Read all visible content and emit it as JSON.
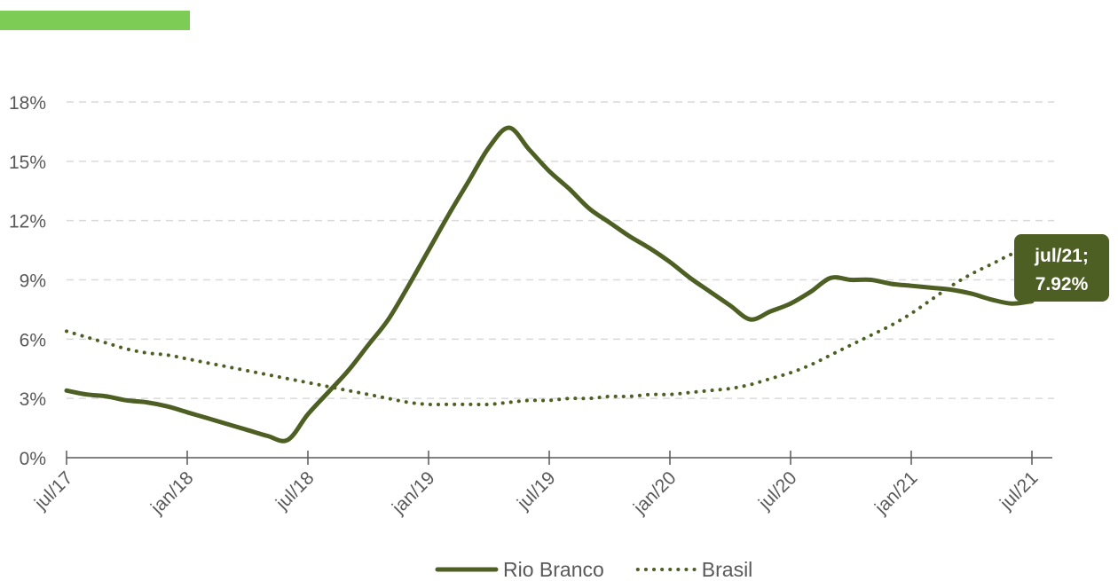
{
  "colors": {
    "accent_bar": "#7ccc55",
    "series_primary": "#4e5f24",
    "series_secondary": "#4e5f24",
    "gridline": "#d9d9d9",
    "axis": "#595959",
    "callout_bg": "#4e5f24",
    "callout_text": "#ffffff"
  },
  "chart_data": {
    "type": "line",
    "title": "",
    "xlabel": "",
    "ylabel": "",
    "ylim": [
      0,
      18
    ],
    "y_ticks": [
      0,
      3,
      6,
      9,
      12,
      15,
      18
    ],
    "y_tick_labels": [
      "0%",
      "3%",
      "6%",
      "9%",
      "12%",
      "15%",
      "18%"
    ],
    "x_ticks": [
      "jul/17",
      "jan/18",
      "jul/18",
      "jan/19",
      "jul/19",
      "jan/20",
      "jul/20",
      "jan/21",
      "jul/21"
    ],
    "x_start": "2017-07",
    "x_end": "2021-07",
    "grid": "horizontal-dashed",
    "legend_position": "bottom",
    "series": [
      {
        "name": "Rio Branco",
        "style": "solid",
        "points": [
          [
            "2017-07",
            3.4
          ],
          [
            "2017-08",
            3.2
          ],
          [
            "2017-09",
            3.1
          ],
          [
            "2017-10",
            2.9
          ],
          [
            "2017-11",
            2.8
          ],
          [
            "2017-12",
            2.6
          ],
          [
            "2018-01",
            2.3
          ],
          [
            "2018-02",
            2.0
          ],
          [
            "2018-03",
            1.7
          ],
          [
            "2018-04",
            1.4
          ],
          [
            "2018-05",
            1.1
          ],
          [
            "2018-06",
            0.9
          ],
          [
            "2018-07",
            2.2
          ],
          [
            "2018-08",
            3.3
          ],
          [
            "2018-09",
            4.4
          ],
          [
            "2018-10",
            5.7
          ],
          [
            "2018-11",
            7.0
          ],
          [
            "2018-12",
            8.7
          ],
          [
            "2019-01",
            10.5
          ],
          [
            "2019-02",
            12.3
          ],
          [
            "2019-03",
            14.0
          ],
          [
            "2019-04",
            15.7
          ],
          [
            "2019-05",
            16.7
          ],
          [
            "2019-06",
            15.6
          ],
          [
            "2019-07",
            14.5
          ],
          [
            "2019-08",
            13.6
          ],
          [
            "2019-09",
            12.6
          ],
          [
            "2019-10",
            11.9
          ],
          [
            "2019-11",
            11.2
          ],
          [
            "2019-12",
            10.6
          ],
          [
            "2020-01",
            9.9
          ],
          [
            "2020-02",
            9.1
          ],
          [
            "2020-03",
            8.4
          ],
          [
            "2020-04",
            7.7
          ],
          [
            "2020-05",
            7.0
          ],
          [
            "2020-06",
            7.4
          ],
          [
            "2020-07",
            7.8
          ],
          [
            "2020-08",
            8.4
          ],
          [
            "2020-09",
            9.1
          ],
          [
            "2020-10",
            9.0
          ],
          [
            "2020-11",
            9.0
          ],
          [
            "2020-12",
            8.8
          ],
          [
            "2021-01",
            8.7
          ],
          [
            "2021-02",
            8.6
          ],
          [
            "2021-03",
            8.5
          ],
          [
            "2021-04",
            8.3
          ],
          [
            "2021-05",
            8.0
          ],
          [
            "2021-06",
            7.8
          ],
          [
            "2021-07",
            7.92
          ]
        ]
      },
      {
        "name": "Brasil",
        "style": "dotted",
        "points": [
          [
            "2017-07",
            6.4
          ],
          [
            "2017-08",
            6.1
          ],
          [
            "2017-09",
            5.8
          ],
          [
            "2017-10",
            5.5
          ],
          [
            "2017-11",
            5.3
          ],
          [
            "2017-12",
            5.2
          ],
          [
            "2018-01",
            5.0
          ],
          [
            "2018-02",
            4.8
          ],
          [
            "2018-03",
            4.6
          ],
          [
            "2018-04",
            4.4
          ],
          [
            "2018-05",
            4.2
          ],
          [
            "2018-06",
            4.0
          ],
          [
            "2018-07",
            3.8
          ],
          [
            "2018-08",
            3.6
          ],
          [
            "2018-09",
            3.4
          ],
          [
            "2018-10",
            3.2
          ],
          [
            "2018-11",
            3.0
          ],
          [
            "2018-12",
            2.8
          ],
          [
            "2019-01",
            2.7
          ],
          [
            "2019-02",
            2.7
          ],
          [
            "2019-03",
            2.7
          ],
          [
            "2019-04",
            2.7
          ],
          [
            "2019-05",
            2.8
          ],
          [
            "2019-06",
            2.9
          ],
          [
            "2019-07",
            2.9
          ],
          [
            "2019-08",
            3.0
          ],
          [
            "2019-09",
            3.0
          ],
          [
            "2019-10",
            3.1
          ],
          [
            "2019-11",
            3.1
          ],
          [
            "2019-12",
            3.2
          ],
          [
            "2020-01",
            3.2
          ],
          [
            "2020-02",
            3.3
          ],
          [
            "2020-03",
            3.4
          ],
          [
            "2020-04",
            3.5
          ],
          [
            "2020-05",
            3.7
          ],
          [
            "2020-06",
            4.0
          ],
          [
            "2020-07",
            4.3
          ],
          [
            "2020-08",
            4.7
          ],
          [
            "2020-09",
            5.2
          ],
          [
            "2020-10",
            5.7
          ],
          [
            "2020-11",
            6.2
          ],
          [
            "2020-12",
            6.7
          ],
          [
            "2021-01",
            7.3
          ],
          [
            "2021-02",
            8.0
          ],
          [
            "2021-03",
            8.7
          ],
          [
            "2021-04",
            9.3
          ],
          [
            "2021-05",
            9.8
          ],
          [
            "2021-06",
            10.3
          ],
          [
            "2021-07",
            10.6
          ]
        ]
      }
    ],
    "annotation": {
      "series": "Rio Branco",
      "x": "2021-07",
      "y": 7.92,
      "line1": "jul/21;",
      "line2": "7.92%"
    }
  }
}
